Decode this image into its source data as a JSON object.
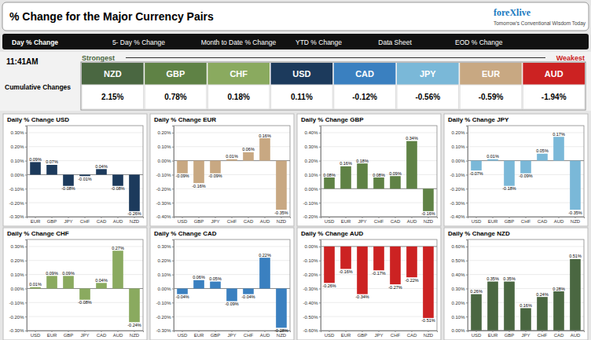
{
  "title": "% Change for the Major Currency Pairs",
  "annotations": [
    {
      "text": "foreXlive",
      "color": "#1a7abf"
    },
    {
      "text": "Tomorrow's Conventional Wisdom Today"
    }
  ],
  "menu": [
    "Day % Change",
    "5- Day % Change",
    "Month to Date % Change",
    "YTD % Change",
    "Data Sheet",
    "EOD % Change"
  ],
  "chart_data": [
    {
      "type": "tiles",
      "title": "Cumulative Changes",
      "subtitle": "11:41AM",
      "annotations": [
        {
          "text": "Strongest",
          "color": "#4a6741"
        },
        {
          "text": "Weakest",
          "color": "#cc2222"
        }
      ],
      "categories": [
        "NZD",
        "GBP",
        "CHF",
        "USD",
        "CAD",
        "JPY",
        "EUR",
        "AUD"
      ],
      "values": [
        2.15,
        0.78,
        0.18,
        0.11,
        -0.12,
        -0.56,
        -0.59,
        -1.94
      ],
      "value_labels": [
        "2.15%",
        "0.78%",
        "0.18%",
        "0.11%",
        "-0.12%",
        "-0.56%",
        "-0.59%",
        "-1.94%"
      ],
      "colors": [
        "#4a6741",
        "#5f8245",
        "#8aaa5f",
        "#1c3a5c",
        "#3a80c0",
        "#7ab8d8",
        "#c8a882",
        "#cc2222"
      ]
    },
    {
      "type": "bar",
      "title": "Daily % Change USD",
      "categories": [
        "EUR",
        "GBP",
        "JPY",
        "CHF",
        "CAD",
        "AUD",
        "NZD"
      ],
      "values": [
        0.09,
        0.07,
        -0.08,
        -0.01,
        0.04,
        -0.08,
        -0.26
      ],
      "value_labels": [
        "0.09%",
        "0.07%",
        "-0.08%",
        "-0.01%",
        "0.04%",
        "-0.08%",
        "-0.26%"
      ],
      "data_labels": true,
      "color": "#1c3a5c",
      "ylim": [
        -0.3,
        0.35
      ],
      "yticks": [
        {
          "value": -0.3,
          "label": "-0.30%"
        },
        {
          "value": -0.2,
          "label": "-0.20%"
        },
        {
          "value": -0.1,
          "label": "-0.10%"
        },
        {
          "value": 0,
          "label": "0.00%"
        },
        {
          "value": 0.1,
          "label": "0.10%"
        },
        {
          "value": 0.2,
          "label": "0.20%"
        },
        {
          "value": 0.3,
          "label": "0.30%"
        }
      ],
      "grid": true
    },
    {
      "type": "bar",
      "title": "Daily % Change EUR",
      "categories": [
        "USD",
        "GBP",
        "JPY",
        "CHF",
        "CAD",
        "AUD",
        "NZD"
      ],
      "values": [
        -0.09,
        -0.16,
        -0.09,
        0.01,
        0.06,
        0.16,
        -0.35
      ],
      "value_labels": [
        "-0.09%",
        "-0.16%",
        "-0.09%",
        "0.01%",
        "0.06%",
        "0.16%",
        "-0.35%"
      ],
      "data_labels": true,
      "color": "#c8a882",
      "ylim": [
        -0.4,
        0.25
      ],
      "yticks": [
        {
          "value": -0.4,
          "label": "-0.40%"
        },
        {
          "value": -0.3,
          "label": "-0.30%"
        },
        {
          "value": -0.2,
          "label": "-0.20%"
        },
        {
          "value": -0.1,
          "label": "-0.10%"
        },
        {
          "value": 0,
          "label": "0.00%"
        },
        {
          "value": 0.1,
          "label": "0.10%"
        },
        {
          "value": 0.2,
          "label": "0.20%"
        }
      ],
      "grid": true
    },
    {
      "type": "bar",
      "title": "Daily % Change GBP",
      "categories": [
        "USD",
        "EUR",
        "JPY",
        "CHF",
        "CAD",
        "AUD",
        "NZD"
      ],
      "values": [
        0.08,
        0.16,
        0.18,
        0.08,
        0.09,
        0.34,
        -0.16
      ],
      "value_labels": [
        "0.08%",
        "0.16%",
        "0.18%",
        "0.08%",
        "0.09%",
        "0.34%",
        "-0.16%"
      ],
      "data_labels": true,
      "color": "#5f8245",
      "ylim": [
        -0.2,
        0.45
      ],
      "yticks": [
        {
          "value": -0.2,
          "label": "-0.20%"
        },
        {
          "value": -0.1,
          "label": "-0.10%"
        },
        {
          "value": 0,
          "label": "0.00%"
        },
        {
          "value": 0.1,
          "label": "0.10%"
        },
        {
          "value": 0.2,
          "label": "0.20%"
        },
        {
          "value": 0.3,
          "label": "0.30%"
        },
        {
          "value": 0.4,
          "label": "0.40%"
        }
      ],
      "grid": true
    },
    {
      "type": "bar",
      "title": "Daily % Change JPY",
      "categories": [
        "USD",
        "EUR",
        "GBP",
        "CHF",
        "CAD",
        "AUD",
        "NZD"
      ],
      "values": [
        -0.07,
        0.01,
        -0.18,
        -0.09,
        0.05,
        0.17,
        -0.35
      ],
      "value_labels": [
        "-0.07%",
        "0.01%",
        "-0.18%",
        "-0.09%",
        "0.05%",
        "0.17%",
        "-0.35%"
      ],
      "data_labels": true,
      "color": "#7ab8d8",
      "ylim": [
        -0.4,
        0.25
      ],
      "yticks": [
        {
          "value": -0.4,
          "label": "-0.40%"
        },
        {
          "value": -0.3,
          "label": "-0.30%"
        },
        {
          "value": -0.2,
          "label": "-0.20%"
        },
        {
          "value": -0.1,
          "label": "-0.10%"
        },
        {
          "value": 0,
          "label": "0.00%"
        },
        {
          "value": 0.1,
          "label": "0.10%"
        },
        {
          "value": 0.2,
          "label": "0.20%"
        }
      ],
      "grid": true
    },
    {
      "type": "bar",
      "title": "Daily % Change CHF",
      "categories": [
        "USD",
        "EUR",
        "GBP",
        "JPY",
        "CAD",
        "AUD",
        "NZD"
      ],
      "values": [
        0.01,
        0.09,
        0.09,
        -0.08,
        0.04,
        0.27,
        -0.24
      ],
      "value_labels": [
        "0.01%",
        "0.09%",
        "0.09%",
        "-0.08%",
        "0.04%",
        "0.27%",
        "-0.24%"
      ],
      "data_labels": true,
      "color": "#8aaa5f",
      "ylim": [
        -0.3,
        0.35
      ],
      "yticks": [
        {
          "value": -0.3,
          "label": "-0.30%"
        },
        {
          "value": -0.2,
          "label": "-0.20%"
        },
        {
          "value": -0.1,
          "label": "-0.10%"
        },
        {
          "value": 0,
          "label": "0.00%"
        },
        {
          "value": 0.1,
          "label": "0.10%"
        },
        {
          "value": 0.2,
          "label": "0.20%"
        },
        {
          "value": 0.3,
          "label": "0.30%"
        }
      ],
      "grid": true
    },
    {
      "type": "bar",
      "title": "Daily % Change CAD",
      "categories": [
        "USD",
        "EUR",
        "GBP",
        "JPY",
        "CHF",
        "AUD",
        "NZD"
      ],
      "values": [
        -0.04,
        0.06,
        0.05,
        -0.09,
        -0.04,
        0.22,
        -0.28
      ],
      "value_labels": [
        "-0.04%",
        "0.06%",
        "0.05%",
        "-0.09%",
        "-0.04%",
        "0.22%",
        "-0.28%"
      ],
      "data_labels": true,
      "color": "#3a80c0",
      "ylim": [
        -0.3,
        0.35
      ],
      "yticks": [
        {
          "value": -0.3,
          "label": "-0.30%"
        },
        {
          "value": -0.2,
          "label": "-0.20%"
        },
        {
          "value": -0.1,
          "label": "-0.10%"
        },
        {
          "value": 0,
          "label": "0.00%"
        },
        {
          "value": 0.1,
          "label": "0.10%"
        },
        {
          "value": 0.2,
          "label": "0.20%"
        },
        {
          "value": 0.3,
          "label": "0.30%"
        }
      ],
      "grid": true
    },
    {
      "type": "bar",
      "title": "Daily % Change AUD",
      "categories": [
        "USD",
        "EUR",
        "GBP",
        "JPY",
        "CHF",
        "CAD",
        "NZD"
      ],
      "values": [
        -0.26,
        -0.16,
        -0.34,
        -0.17,
        -0.27,
        -0.22,
        -0.51
      ],
      "value_labels": [
        "-0.26%",
        "-0.16%",
        "-0.34%",
        "-0.17%",
        "-0.27%",
        "-0.22%",
        "-0.51%"
      ],
      "data_labels": true,
      "color": "#cc2222",
      "ylim": [
        -0.6,
        0.05
      ],
      "yticks": [
        {
          "value": -0.6,
          "label": "-0.60%"
        },
        {
          "value": -0.5,
          "label": "-0.50%"
        },
        {
          "value": -0.4,
          "label": "-0.40%"
        },
        {
          "value": -0.3,
          "label": "-0.30%"
        },
        {
          "value": -0.2,
          "label": "-0.20%"
        },
        {
          "value": -0.1,
          "label": "-0.10%"
        },
        {
          "value": 0,
          "label": "0.00%"
        }
      ],
      "grid": true
    },
    {
      "type": "bar",
      "title": "Daily % Change NZD",
      "categories": [
        "USD",
        "EUR",
        "GBP",
        "JPY",
        "CHF",
        "CAD",
        "AUD"
      ],
      "values": [
        0.26,
        0.35,
        0.35,
        0.16,
        0.24,
        0.28,
        0.51
      ],
      "value_labels": [
        "0.26%",
        "0.35%",
        "0.35%",
        "0.16%",
        "0.24%",
        "0.28%",
        "0.51%"
      ],
      "data_labels": true,
      "color": "#4a6741",
      "ylim": [
        0,
        0.65
      ],
      "yticks": [
        {
          "value": 0,
          "label": "0.00%"
        },
        {
          "value": 0.1,
          "label": "0.10%"
        },
        {
          "value": 0.2,
          "label": "0.20%"
        },
        {
          "value": 0.3,
          "label": "0.30%"
        },
        {
          "value": 0.4,
          "label": "0.40%"
        },
        {
          "value": 0.5,
          "label": "0.50%"
        },
        {
          "value": 0.6,
          "label": "0.60%"
        }
      ],
      "grid": true
    }
  ]
}
